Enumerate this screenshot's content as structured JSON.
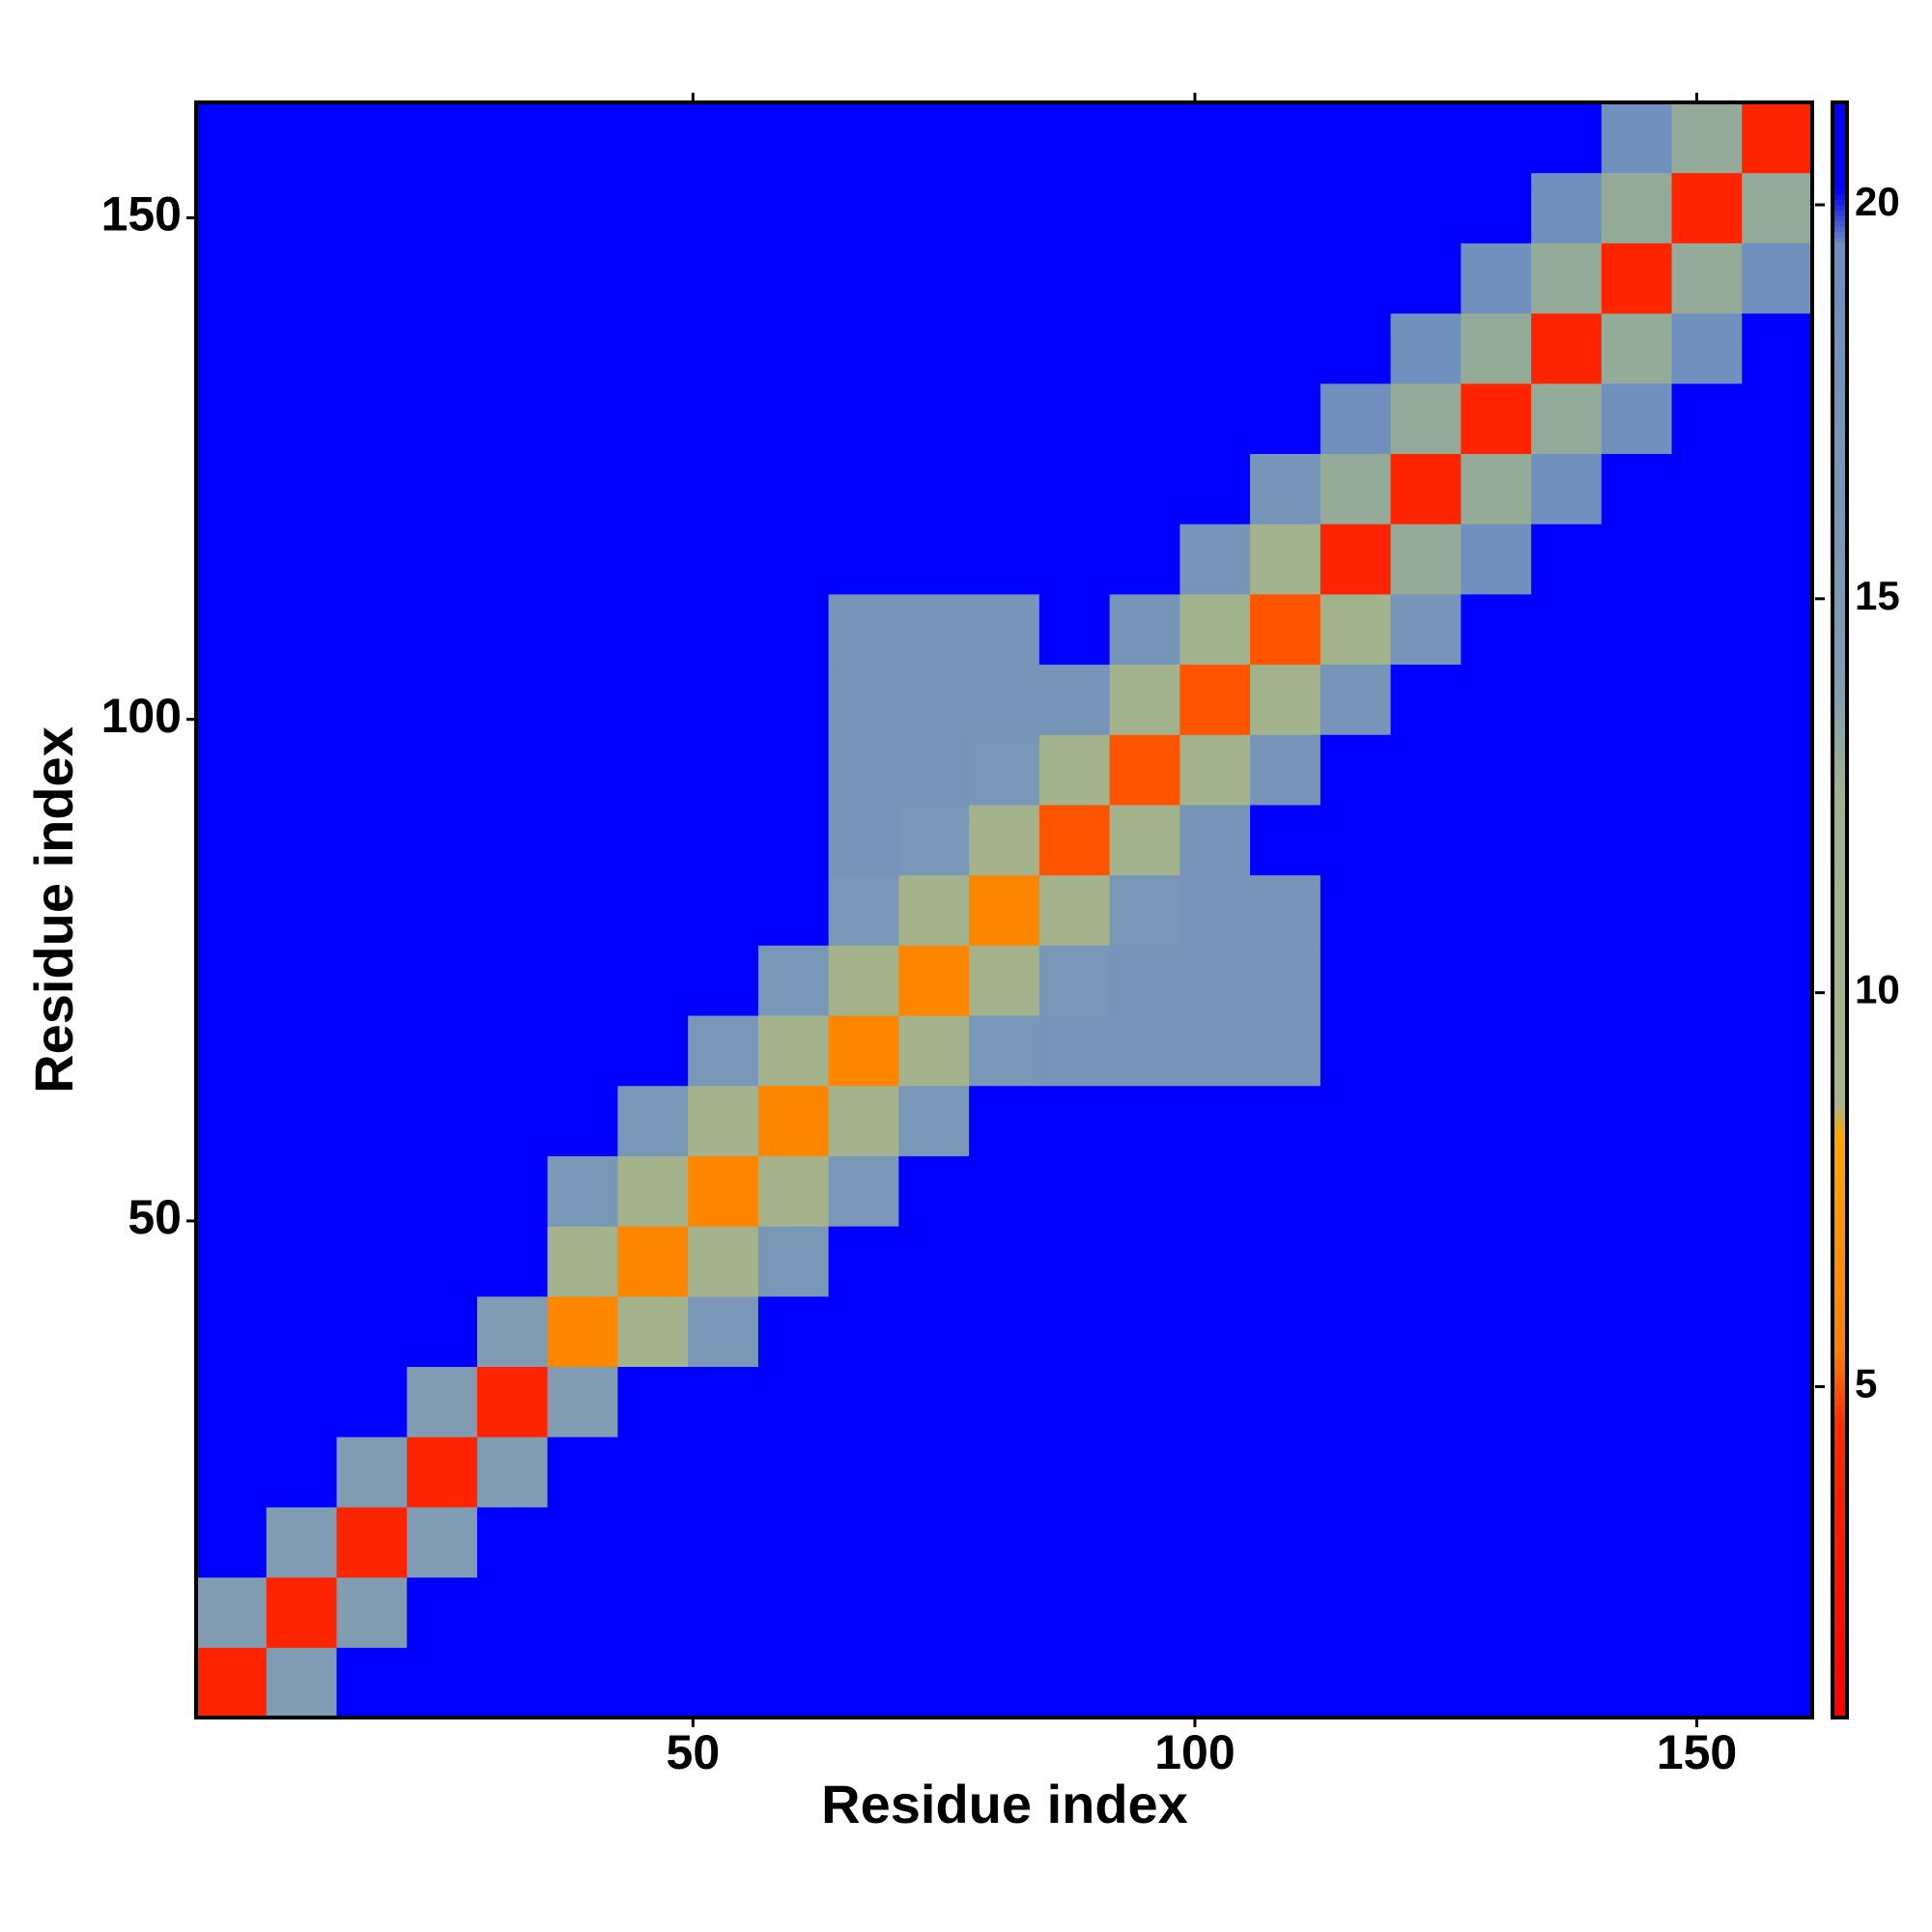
{
  "chart_data": {
    "type": "heatmap",
    "xlabel": "Residue index",
    "ylabel": "Residue index",
    "x": [
      4,
      11,
      18,
      25,
      32,
      39,
      46,
      53,
      60,
      67,
      74,
      81,
      88,
      95,
      102,
      109,
      116,
      123,
      130,
      137,
      144,
      151,
      158
    ],
    "y": [
      4,
      11,
      18,
      25,
      32,
      39,
      46,
      53,
      60,
      67,
      74,
      81,
      88,
      95,
      102,
      109,
      116,
      123,
      130,
      137,
      144,
      151,
      158
    ],
    "values": [
      [
        4,
        14,
        21,
        21,
        21,
        21,
        21,
        21,
        21,
        21,
        21,
        21,
        21,
        21,
        21,
        21,
        21,
        21,
        21,
        21,
        21,
        21,
        21
      ],
      [
        14,
        4,
        14,
        21,
        21,
        21,
        21,
        21,
        21,
        21,
        21,
        21,
        21,
        21,
        21,
        21,
        21,
        21,
        21,
        21,
        21,
        21,
        21
      ],
      [
        21,
        14,
        4,
        14,
        21,
        21,
        21,
        21,
        21,
        21,
        21,
        21,
        21,
        21,
        21,
        21,
        21,
        21,
        21,
        21,
        21,
        21,
        21
      ],
      [
        21,
        21,
        14,
        4,
        14,
        21,
        21,
        21,
        21,
        21,
        21,
        21,
        21,
        21,
        21,
        21,
        21,
        21,
        21,
        21,
        21,
        21,
        21
      ],
      [
        21,
        21,
        21,
        14,
        4,
        14,
        21,
        21,
        21,
        21,
        21,
        21,
        21,
        21,
        21,
        21,
        21,
        21,
        21,
        21,
        21,
        21,
        21
      ],
      [
        21,
        21,
        21,
        21,
        14,
        6,
        10,
        16,
        21,
        21,
        21,
        21,
        21,
        21,
        21,
        21,
        21,
        21,
        21,
        21,
        21,
        21,
        21
      ],
      [
        21,
        21,
        21,
        21,
        21,
        10,
        6,
        10,
        16,
        21,
        21,
        21,
        21,
        21,
        21,
        21,
        21,
        21,
        21,
        21,
        21,
        21,
        21
      ],
      [
        21,
        21,
        21,
        21,
        21,
        16,
        10,
        6,
        10,
        16,
        21,
        21,
        21,
        21,
        21,
        21,
        21,
        21,
        21,
        21,
        21,
        21,
        21
      ],
      [
        21,
        21,
        21,
        21,
        21,
        21,
        16,
        10,
        6,
        10,
        16,
        21,
        21,
        21,
        21,
        21,
        21,
        21,
        21,
        21,
        21,
        21,
        21
      ],
      [
        21,
        21,
        21,
        21,
        21,
        21,
        21,
        16,
        10,
        6,
        10,
        16,
        17,
        17,
        17,
        17,
        21,
        21,
        21,
        21,
        21,
        21,
        21
      ],
      [
        21,
        21,
        21,
        21,
        21,
        21,
        21,
        21,
        16,
        10,
        6,
        10,
        16,
        17,
        17,
        17,
        21,
        21,
        21,
        21,
        21,
        21,
        21
      ],
      [
        21,
        21,
        21,
        21,
        21,
        21,
        21,
        21,
        21,
        16,
        10,
        6,
        10,
        16,
        17,
        17,
        21,
        21,
        21,
        21,
        21,
        21,
        21
      ],
      [
        21,
        21,
        21,
        21,
        21,
        21,
        21,
        21,
        21,
        17,
        16,
        10,
        5,
        11,
        17,
        21,
        21,
        21,
        21,
        21,
        21,
        21,
        21
      ],
      [
        21,
        21,
        21,
        21,
        21,
        21,
        21,
        21,
        21,
        17,
        17,
        16,
        11,
        5,
        11,
        17,
        21,
        21,
        21,
        21,
        21,
        21,
        21
      ],
      [
        21,
        21,
        21,
        21,
        21,
        21,
        21,
        21,
        21,
        17,
        17,
        17,
        17,
        11,
        5,
        11,
        17,
        21,
        21,
        21,
        21,
        21,
        21
      ],
      [
        21,
        21,
        21,
        21,
        21,
        21,
        21,
        21,
        21,
        17,
        17,
        17,
        21,
        17,
        11,
        5,
        11,
        17,
        21,
        21,
        21,
        21,
        21
      ],
      [
        21,
        21,
        21,
        21,
        21,
        21,
        21,
        21,
        21,
        21,
        21,
        21,
        21,
        21,
        17,
        11,
        4,
        13,
        19,
        21,
        21,
        21,
        21
      ],
      [
        21,
        21,
        21,
        21,
        21,
        21,
        21,
        21,
        21,
        21,
        21,
        21,
        21,
        21,
        21,
        17,
        13,
        4,
        13,
        19,
        21,
        21,
        21
      ],
      [
        21,
        21,
        21,
        21,
        21,
        21,
        21,
        21,
        21,
        21,
        21,
        21,
        21,
        21,
        21,
        21,
        19,
        13,
        4,
        13,
        19,
        21,
        21
      ],
      [
        21,
        21,
        21,
        21,
        21,
        21,
        21,
        21,
        21,
        21,
        21,
        21,
        21,
        21,
        21,
        21,
        21,
        19,
        13,
        4,
        13,
        19,
        21
      ],
      [
        21,
        21,
        21,
        21,
        21,
        21,
        21,
        21,
        21,
        21,
        21,
        21,
        21,
        21,
        21,
        21,
        21,
        21,
        19,
        13,
        4,
        13,
        19
      ],
      [
        21,
        21,
        21,
        21,
        21,
        21,
        21,
        21,
        21,
        21,
        21,
        21,
        21,
        21,
        21,
        21,
        21,
        21,
        21,
        19,
        13,
        4,
        13
      ],
      [
        21,
        21,
        21,
        21,
        21,
        21,
        21,
        21,
        21,
        21,
        21,
        21,
        21,
        21,
        21,
        21,
        21,
        21,
        21,
        21,
        19,
        13,
        4
      ]
    ],
    "xlim": [
      0.5,
      161.5
    ],
    "ylim": [
      0.5,
      161.5
    ],
    "xticks": [
      50,
      100,
      150
    ],
    "yticks": [
      50,
      100,
      150
    ],
    "zlim": [
      0.8,
      21.3
    ],
    "zticks": [
      5,
      10,
      15,
      20
    ],
    "colorscale": [
      {
        "value": 0.8,
        "color": "#ff0000"
      },
      {
        "value": 4.5,
        "color": "#ff2a00"
      },
      {
        "value": 5.5,
        "color": "#ff8000"
      },
      {
        "value": 8.2,
        "color": "#ffa500"
      },
      {
        "value": 8.6,
        "color": "#a8b48c"
      },
      {
        "value": 12.5,
        "color": "#9fb28e"
      },
      {
        "value": 14,
        "color": "#7f9cb2"
      },
      {
        "value": 19.5,
        "color": "#6e8fbf"
      },
      {
        "value": 20.2,
        "color": "#0000ff"
      },
      {
        "value": 21.3,
        "color": "#0000ff"
      }
    ]
  }
}
